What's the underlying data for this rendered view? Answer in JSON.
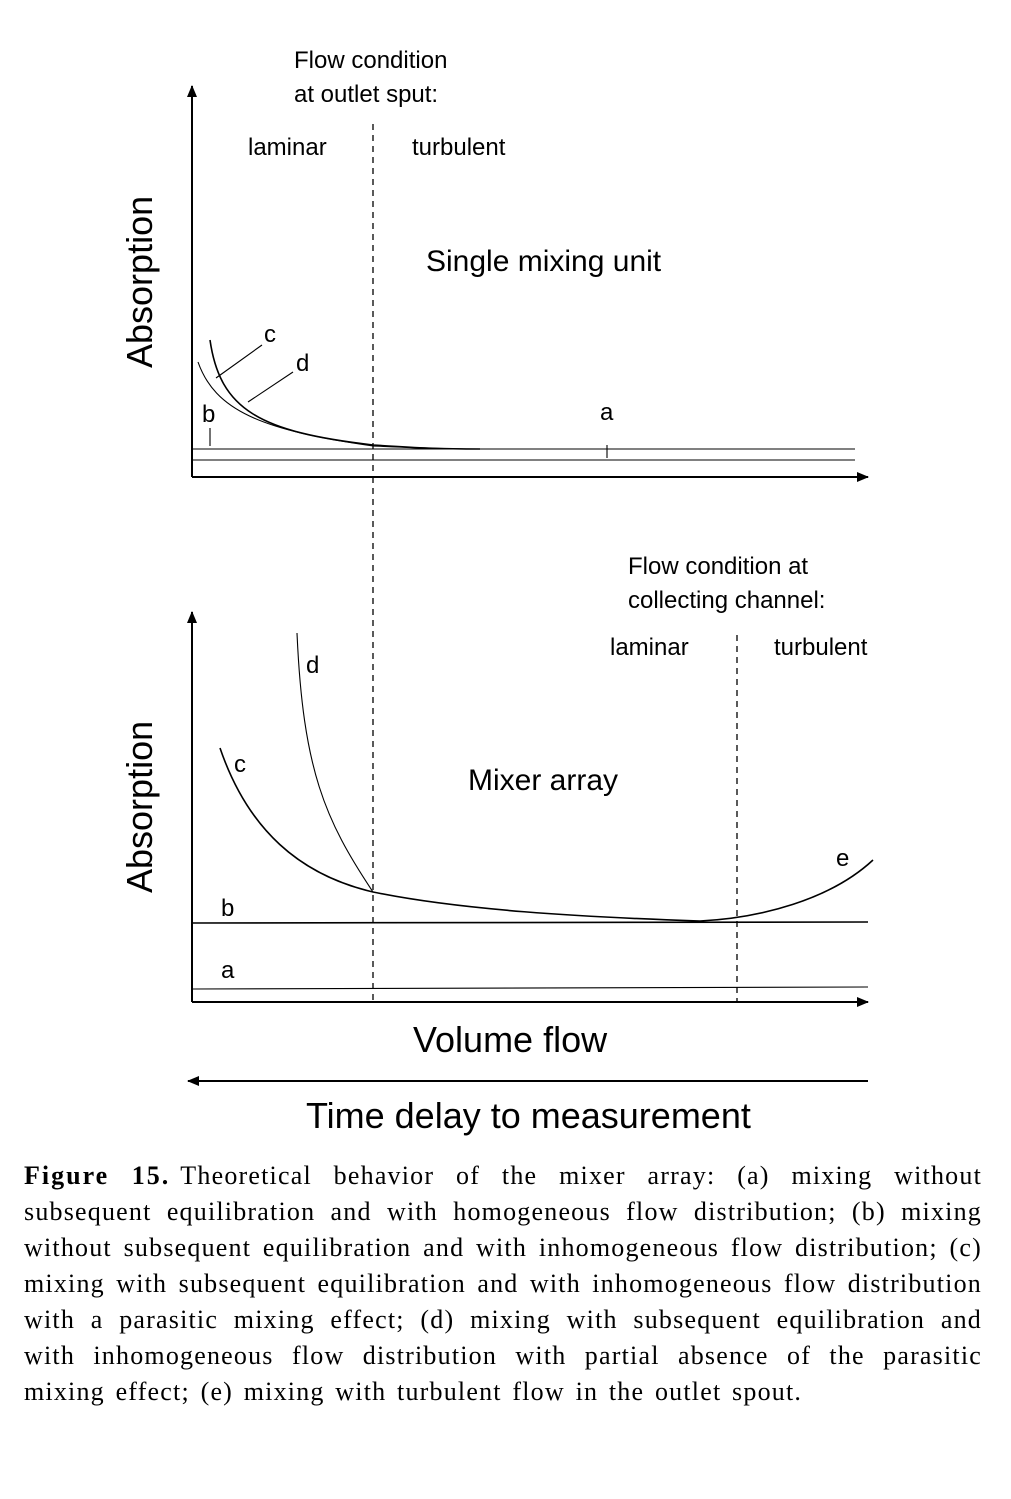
{
  "top_panel": {
    "flow_condition": [
      "Flow condition",
      "at outlet sput:"
    ],
    "laminar": "laminar",
    "turbulent": "turbulent",
    "ylabel": "Absorption",
    "title": "Single mixing unit",
    "labels": {
      "a": "a",
      "b": "b",
      "c": "c",
      "d": "d"
    }
  },
  "bottom_panel": {
    "flow_condition": [
      "Flow condition at",
      "collecting channel:"
    ],
    "laminar": "laminar",
    "turbulent": "turbulent",
    "ylabel": "Absorption",
    "title": "Mixer array",
    "labels": {
      "a": "a",
      "b": "b",
      "c": "c",
      "d": "d",
      "e": "e"
    }
  },
  "xlabel": "Volume flow",
  "xlabel_reverse": "Time delay to measurement",
  "caption": {
    "label": "Figure 15.",
    "text": "Theoretical behavior of the mixer array: (a) mixing without subsequent equilibration and with homogeneous flow distribution; (b) mixing without subsequent equilibration and with inhomogeneous flow distribution; (c) mixing with subsequent equilibration and with inhomogeneous flow distribution with a parasitic mixing effect; (d) mixing with subsequent equilibration and with inhomogeneous flow distribution with partial absence of the parasitic mixing effect; (e) mixing with turbulent flow in the outlet spout."
  }
}
